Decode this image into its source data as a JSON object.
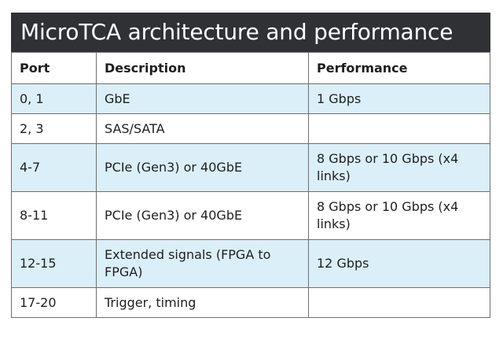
{
  "title": "MicroTCA architecture and performance",
  "headers": {
    "port": "Port",
    "description": "Description",
    "performance": "Performance"
  },
  "rows": [
    {
      "port": "0, 1",
      "description": "GbE",
      "performance": "1 Gbps"
    },
    {
      "port": "2, 3",
      "description": "SAS/SATA",
      "performance": ""
    },
    {
      "port": "4-7",
      "description": "PCIe (Gen3) or 40GbE",
      "performance": "8 Gbps or 10 Gbps (x4 links)"
    },
    {
      "port": "8-11",
      "description": "PCIe (Gen3) or 40GbE",
      "performance": "8 Gbps or 10 Gbps (x4 links)"
    },
    {
      "port": "12-15",
      "description": "Extended signals (FPGA to FPGA)",
      "performance": "12 Gbps"
    },
    {
      "port": "17-20",
      "description": "Trigger, timing",
      "performance": ""
    }
  ],
  "colors": {
    "title_bg": "#2f3134",
    "shade": "#dbeff9",
    "border": "#6e6e6e"
  }
}
